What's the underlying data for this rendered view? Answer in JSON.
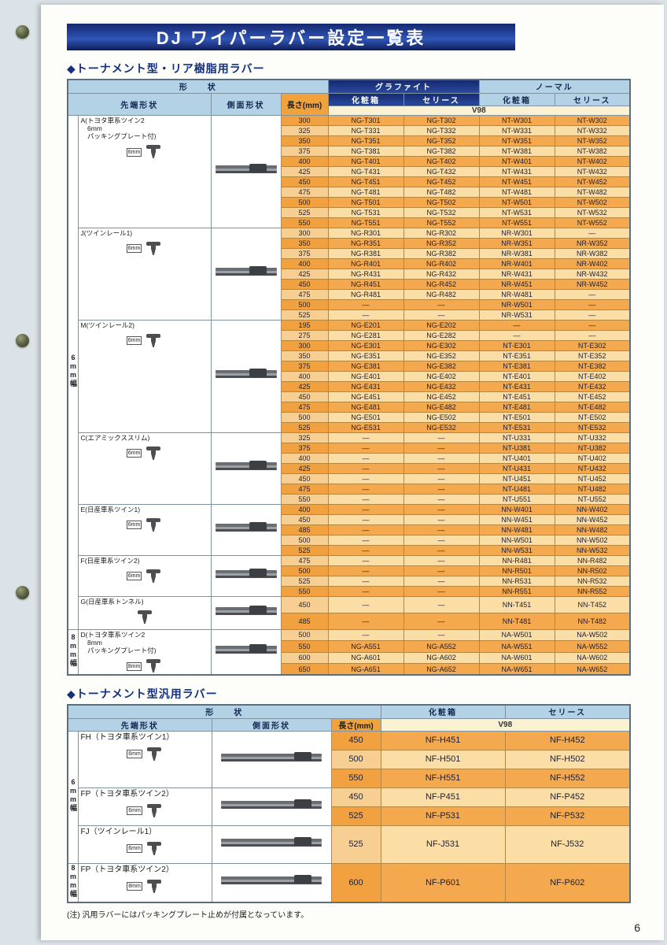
{
  "title": "DJ ワイパーラバー設定一覧表",
  "page_number": "6",
  "footnote": "(注) 汎用ラバーにはパッキングプレート止めが付属となっています。",
  "colors": {
    "accent_navy": "#16296f",
    "header_blue": "#b4d2e6",
    "header_orange": "#f0a23c",
    "header_cream": "#faf2d3",
    "row_dark": "#f4a94e",
    "row_light": "#fbdda6"
  },
  "table1": {
    "heading": "◆トーナメント型・リア樹脂用ラバー",
    "headers": {
      "shape": "形　　状",
      "graphite": "グラファイト",
      "normal": "ノーマル",
      "tip": "先端形状",
      "side": "側面形状",
      "length": "長さ(mm)",
      "box": "化粧箱",
      "series": "セリース",
      "v98": "V98"
    },
    "bands": {
      "6mm": "6mm幅",
      "8mm": "8mm幅"
    },
    "groups": [
      {
        "band": "6mm",
        "dim": "6mm",
        "label_lines": [
          "A(トヨタ車系ツイン2",
          "　6mm",
          "　パッキングプレート付)"
        ],
        "rows": [
          [
            "300",
            "NG-T301",
            "NG-T302",
            "NT-W301",
            "NT-W302"
          ],
          [
            "325",
            "NG-T331",
            "NG-T332",
            "NT-W331",
            "NT-W332"
          ],
          [
            "350",
            "NG-T351",
            "NG-T352",
            "NT-W351",
            "NT-W352"
          ],
          [
            "375",
            "NG-T381",
            "NG-T382",
            "NT-W381",
            "NT-W382"
          ],
          [
            "400",
            "NG-T401",
            "NG-T402",
            "NT-W401",
            "NT-W402"
          ],
          [
            "425",
            "NG-T431",
            "NG-T432",
            "NT-W431",
            "NT-W432"
          ],
          [
            "450",
            "NG-T451",
            "NG-T452",
            "NT-W451",
            "NT-W452"
          ],
          [
            "475",
            "NG-T481",
            "NG-T482",
            "NT-W481",
            "NT-W482"
          ],
          [
            "500",
            "NG-T501",
            "NG-T502",
            "NT-W501",
            "NT-W502"
          ],
          [
            "525",
            "NG-T531",
            "NG-T532",
            "NT-W531",
            "NT-W532"
          ],
          [
            "550",
            "NG-T551",
            "NG-T552",
            "NT-W551",
            "NT-W552"
          ]
        ]
      },
      {
        "band": "6mm",
        "dim": "6mm",
        "label_lines": [
          "J(ツインレール1)"
        ],
        "rows": [
          [
            "300",
            "NG-R301",
            "NG-R302",
            "NR-W301",
            "—"
          ],
          [
            "350",
            "NG-R351",
            "NG-R352",
            "NR-W351",
            "NR-W352"
          ],
          [
            "375",
            "NG-R381",
            "NG-R382",
            "NR-W381",
            "NR-W382"
          ],
          [
            "400",
            "NG-R401",
            "NG-R402",
            "NR-W401",
            "NR-W402"
          ],
          [
            "425",
            "NG-R431",
            "NG-R432",
            "NR-W431",
            "NR-W432"
          ],
          [
            "450",
            "NG-R451",
            "NG-R452",
            "NR-W451",
            "NR-W452"
          ],
          [
            "475",
            "NG-R481",
            "NG-R482",
            "NR-W481",
            "—"
          ],
          [
            "500",
            "—",
            "—",
            "NR-W501",
            "—"
          ],
          [
            "525",
            "—",
            "—",
            "NR-W531",
            "—"
          ]
        ]
      },
      {
        "band": "6mm",
        "dim": "6mm",
        "label_lines": [
          "M(ツインレール2)"
        ],
        "rows": [
          [
            "195",
            "NG-E201",
            "NG-E202",
            "—",
            "—"
          ],
          [
            "275",
            "NG-E281",
            "NG-E282",
            "—",
            "—"
          ],
          [
            "300",
            "NG-E301",
            "NG-E302",
            "NT-E301",
            "NT-E302"
          ],
          [
            "350",
            "NG-E351",
            "NG-E352",
            "NT-E351",
            "NT-E352"
          ],
          [
            "375",
            "NG-E381",
            "NG-E382",
            "NT-E381",
            "NT-E382"
          ],
          [
            "400",
            "NG-E401",
            "NG-E402",
            "NT-E401",
            "NT-E402"
          ],
          [
            "425",
            "NG-E431",
            "NG-E432",
            "NT-E431",
            "NT-E432"
          ],
          [
            "450",
            "NG-E451",
            "NG-E452",
            "NT-E451",
            "NT-E452"
          ],
          [
            "475",
            "NG-E481",
            "NG-E482",
            "NT-E481",
            "NT-E482"
          ],
          [
            "500",
            "NG-E501",
            "NG-E502",
            "NT-E501",
            "NT-E502"
          ],
          [
            "525",
            "NG-E531",
            "NG-E532",
            "NT-E531",
            "NT-E532"
          ]
        ]
      },
      {
        "band": "6mm",
        "dim": "6mm",
        "label_lines": [
          "C(エアミックススリム)"
        ],
        "rows": [
          [
            "325",
            "—",
            "—",
            "NT-U331",
            "NT-U332"
          ],
          [
            "375",
            "—",
            "—",
            "NT-U381",
            "NT-U382"
          ],
          [
            "400",
            "—",
            "—",
            "NT-U401",
            "NT-U402"
          ],
          [
            "425",
            "—",
            "—",
            "NT-U431",
            "NT-U432"
          ],
          [
            "450",
            "—",
            "—",
            "NT-U451",
            "NT-U452"
          ],
          [
            "475",
            "—",
            "—",
            "NT-U481",
            "NT-U482"
          ],
          [
            "550",
            "—",
            "—",
            "NT-U551",
            "NT-U552"
          ]
        ]
      },
      {
        "band": "6mm",
        "dim": "6mm",
        "label_lines": [
          "E(日産車系ツイン1)"
        ],
        "rows": [
          [
            "400",
            "—",
            "—",
            "NN-W401",
            "NN-W402"
          ],
          [
            "450",
            "—",
            "—",
            "NN-W451",
            "NN-W452"
          ],
          [
            "485",
            "—",
            "—",
            "NN-W481",
            "NN-W482"
          ],
          [
            "500",
            "—",
            "—",
            "NN-W501",
            "NN-W502"
          ],
          [
            "525",
            "—",
            "—",
            "NN-W531",
            "NN-W532"
          ]
        ]
      },
      {
        "band": "6mm",
        "dim": "6mm",
        "label_lines": [
          "F(日産車系ツイン2)"
        ],
        "rows": [
          [
            "475",
            "—",
            "—",
            "NN-R481",
            "NN-R482"
          ],
          [
            "500",
            "—",
            "—",
            "NN-R501",
            "NN-R502"
          ],
          [
            "525",
            "—",
            "—",
            "NN-R531",
            "NN-R532"
          ],
          [
            "550",
            "—",
            "—",
            "NN-R551",
            "NN-R552"
          ]
        ]
      },
      {
        "band": "6mm",
        "dim": "",
        "label_lines": [
          "G(日産車系トンネル)"
        ],
        "rows": [
          [
            "450",
            "—",
            "—",
            "NN-T451",
            "NN-T452"
          ],
          [
            "485",
            "—",
            "—",
            "NN-T481",
            "NN-T482"
          ]
        ]
      },
      {
        "band": "8mm",
        "dim": "8mm",
        "label_lines": [
          "D(トヨタ車系ツイン2",
          "　8mm",
          "　パッキングプレート付)"
        ],
        "rows": [
          [
            "500",
            "—",
            "—",
            "NA-W501",
            "NA-W502"
          ],
          [
            "550",
            "NG-A551",
            "NG-A552",
            "NA-W551",
            "NA-W552"
          ],
          [
            "600",
            "NG-A601",
            "NG-A602",
            "NA-W601",
            "NA-W602"
          ],
          [
            "650",
            "NG-A651",
            "NG-A652",
            "NA-W651",
            "NA-W652"
          ]
        ]
      }
    ]
  },
  "table2": {
    "heading": "◆トーナメント型汎用ラバー",
    "headers": {
      "shape": "形　　状",
      "tip": "先端形状",
      "side": "側面形状",
      "length": "長さ(mm)",
      "box": "化粧箱",
      "series": "セリース",
      "v98": "V98"
    },
    "bands": {
      "6mm": "6mm幅",
      "8mm": "8mm幅"
    },
    "groups": [
      {
        "band": "6mm",
        "dim": "6mm",
        "label_lines": [
          "FH（トヨタ車系ツイン1）"
        ],
        "rows": [
          [
            "450",
            "NF-H451",
            "NF-H452"
          ],
          [
            "500",
            "NF-H501",
            "NF-H502"
          ],
          [
            "550",
            "NF-H551",
            "NF-H552"
          ]
        ]
      },
      {
        "band": "6mm",
        "dim": "6mm",
        "label_lines": [
          "FP（トヨタ車系ツイン2）"
        ],
        "rows": [
          [
            "450",
            "NF-P451",
            "NF-P452"
          ],
          [
            "525",
            "NF-P531",
            "NF-P532"
          ]
        ]
      },
      {
        "band": "6mm",
        "dim": "6mm",
        "label_lines": [
          "FJ（ツインレール1）"
        ],
        "rows": [
          [
            "525",
            "NF-J531",
            "NF-J532"
          ]
        ]
      },
      {
        "band": "8mm",
        "dim": "8mm",
        "label_lines": [
          "FP（トヨタ車系ツイン2）"
        ],
        "rows": [
          [
            "600",
            "NF-P601",
            "NF-P602"
          ]
        ]
      }
    ]
  }
}
